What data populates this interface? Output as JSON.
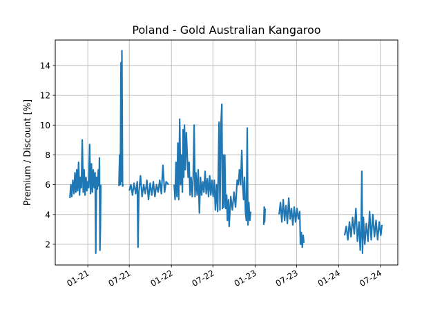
{
  "chart_data": {
    "type": "line",
    "title": "Poland - Gold Australian Kangaroo",
    "xlabel": "",
    "ylabel": "Premium / Discount [%]",
    "xlim": [
      "2020-08-12",
      "2024-09-15"
    ],
    "ylim": [
      0.61,
      15.71
    ],
    "grid": true,
    "line_color": "#1f77b4",
    "x_ticks": [
      {
        "date": "2021-01-01",
        "label": "01-21"
      },
      {
        "date": "2021-07-01",
        "label": "07-21"
      },
      {
        "date": "2022-01-01",
        "label": "01-22"
      },
      {
        "date": "2022-07-01",
        "label": "07-22"
      },
      {
        "date": "2023-01-01",
        "label": "01-23"
      },
      {
        "date": "2023-07-01",
        "label": "07-23"
      },
      {
        "date": "2024-01-01",
        "label": "01-24"
      },
      {
        "date": "2024-07-01",
        "label": "07-24"
      }
    ],
    "y_ticks": [
      {
        "value": 2,
        "label": "2"
      },
      {
        "value": 4,
        "label": "4"
      },
      {
        "value": 6,
        "label": "6"
      },
      {
        "value": 8,
        "label": "8"
      },
      {
        "value": 10,
        "label": "10"
      },
      {
        "value": 12,
        "label": "12"
      },
      {
        "value": 14,
        "label": "14"
      }
    ],
    "segments": [
      [
        [
          "2020-10-15",
          5.1
        ],
        [
          "2020-10-19",
          6.0
        ],
        [
          "2020-10-23",
          5.2
        ],
        [
          "2020-10-28",
          6.3
        ],
        [
          "2020-11-02",
          5.4
        ],
        [
          "2020-11-06",
          6.8
        ],
        [
          "2020-11-10",
          5.5
        ],
        [
          "2020-11-14",
          7.0
        ],
        [
          "2020-11-18",
          5.6
        ],
        [
          "2020-11-22",
          7.5
        ],
        [
          "2020-11-26",
          5.3
        ],
        [
          "2020-11-30",
          6.5
        ],
        [
          "2020-12-04",
          5.8
        ],
        [
          "2020-12-08",
          9.0
        ],
        [
          "2020-12-12",
          5.5
        ],
        [
          "2020-12-16",
          7.0
        ],
        [
          "2020-12-20",
          5.3
        ],
        [
          "2020-12-24",
          6.5
        ],
        [
          "2020-12-28",
          5.6
        ],
        [
          "2021-01-01",
          6.2
        ],
        [
          "2021-01-05",
          5.8
        ],
        [
          "2021-01-09",
          8.7
        ],
        [
          "2021-01-13",
          5.4
        ],
        [
          "2021-01-17",
          7.4
        ],
        [
          "2021-01-21",
          5.5
        ],
        [
          "2021-01-25",
          7.0
        ],
        [
          "2021-01-29",
          5.8
        ],
        [
          "2021-02-02",
          6.8
        ],
        [
          "2021-02-05",
          1.4
        ],
        [
          "2021-02-08",
          6.5
        ],
        [
          "2021-02-12",
          5.7
        ],
        [
          "2021-02-16",
          7.0
        ],
        [
          "2021-02-19",
          5.9
        ],
        [
          "2021-02-21",
          7.8
        ],
        [
          "2021-02-23",
          1.6
        ],
        [
          "2021-02-25",
          3.1
        ],
        [
          "2021-02-27",
          6.0
        ]
      ],
      [
        [
          "2021-05-17",
          5.9
        ],
        [
          "2021-05-20",
          8.0
        ],
        [
          "2021-05-23",
          6.0
        ],
        [
          "2021-05-26",
          14.2
        ],
        [
          "2021-05-28",
          6.2
        ],
        [
          "2021-05-30",
          15.0
        ],
        [
          "2021-06-02",
          5.9
        ],
        [
          "2021-06-05",
          6.0
        ]
      ],
      [
        [
          "2021-07-01",
          5.6
        ],
        [
          "2021-07-08",
          6.0
        ],
        [
          "2021-07-15",
          5.3
        ],
        [
          "2021-07-22",
          6.1
        ],
        [
          "2021-07-29",
          5.4
        ],
        [
          "2021-08-05",
          6.2
        ],
        [
          "2021-08-08",
          1.8
        ],
        [
          "2021-08-12",
          5.5
        ],
        [
          "2021-08-19",
          6.6
        ],
        [
          "2021-08-26",
          5.2
        ],
        [
          "2021-09-02",
          6.0
        ],
        [
          "2021-09-09",
          5.4
        ],
        [
          "2021-09-16",
          6.3
        ],
        [
          "2021-09-23",
          5.0
        ],
        [
          "2021-09-30",
          6.1
        ],
        [
          "2021-10-07",
          5.3
        ],
        [
          "2021-10-14",
          6.2
        ],
        [
          "2021-10-21",
          5.2
        ],
        [
          "2021-10-28",
          6.0
        ],
        [
          "2021-11-04",
          5.5
        ],
        [
          "2021-11-11",
          6.3
        ],
        [
          "2021-11-18",
          5.4
        ],
        [
          "2021-11-25",
          7.3
        ],
        [
          "2021-12-02",
          5.5
        ],
        [
          "2021-12-09",
          6.2
        ],
        [
          "2021-12-19",
          6.0
        ]
      ],
      [
        [
          "2022-01-13",
          6.0
        ],
        [
          "2022-01-17",
          5.0
        ],
        [
          "2022-01-21",
          7.5
        ],
        [
          "2022-01-25",
          5.2
        ],
        [
          "2022-01-29",
          8.8
        ],
        [
          "2022-02-02",
          5.0
        ],
        [
          "2022-02-06",
          10.4
        ],
        [
          "2022-02-10",
          6.0
        ],
        [
          "2022-02-14",
          8.0
        ],
        [
          "2022-02-18",
          5.5
        ],
        [
          "2022-02-21",
          9.7
        ],
        [
          "2022-02-24",
          6.5
        ],
        [
          "2022-02-27",
          10.0
        ],
        [
          "2022-03-03",
          7.0
        ],
        [
          "2022-03-07",
          9.5
        ],
        [
          "2022-03-11",
          8.0
        ],
        [
          "2022-03-15",
          6.5
        ],
        [
          "2022-03-19",
          7.5
        ],
        [
          "2022-03-23",
          5.3
        ],
        [
          "2022-03-28",
          6.5
        ],
        [
          "2022-04-02",
          5.2
        ],
        [
          "2022-04-06",
          6.5
        ],
        [
          "2022-04-10",
          10.0
        ],
        [
          "2022-04-14",
          5.2
        ],
        [
          "2022-04-18",
          6.8
        ],
        [
          "2022-04-23",
          5.3
        ],
        [
          "2022-04-28",
          7.0
        ],
        [
          "2022-05-03",
          4.1
        ],
        [
          "2022-05-08",
          6.5
        ],
        [
          "2022-05-13",
          5.3
        ],
        [
          "2022-05-18",
          6.2
        ],
        [
          "2022-05-23",
          5.5
        ],
        [
          "2022-05-28",
          6.9
        ],
        [
          "2022-06-02",
          5.4
        ],
        [
          "2022-06-07",
          6.4
        ],
        [
          "2022-06-12",
          5.2
        ],
        [
          "2022-06-17",
          6.6
        ],
        [
          "2022-06-22",
          5.3
        ],
        [
          "2022-06-27",
          6.3
        ],
        [
          "2022-07-02",
          5.2
        ],
        [
          "2022-07-07",
          6.3
        ],
        [
          "2022-07-12",
          4.3
        ],
        [
          "2022-07-17",
          6.0
        ],
        [
          "2022-07-22",
          4.2
        ],
        [
          "2022-07-28",
          10.2
        ],
        [
          "2022-08-01",
          4.3
        ],
        [
          "2022-08-05",
          10.0
        ],
        [
          "2022-08-09",
          11.4
        ],
        [
          "2022-08-12",
          4.4
        ],
        [
          "2022-08-15",
          8.0
        ],
        [
          "2022-08-18",
          4.5
        ],
        [
          "2022-08-22",
          8.0
        ],
        [
          "2022-08-26",
          4.4
        ],
        [
          "2022-08-30",
          5.3
        ],
        [
          "2022-09-02",
          3.6
        ],
        [
          "2022-09-07",
          5.0
        ],
        [
          "2022-09-10",
          3.2
        ],
        [
          "2022-09-17",
          5.2
        ],
        [
          "2022-09-24",
          4.3
        ],
        [
          "2022-10-01",
          5.5
        ],
        [
          "2022-10-08",
          4.5
        ],
        [
          "2022-10-15",
          6.3
        ],
        [
          "2022-10-20",
          6.0
        ],
        [
          "2022-10-25",
          7.0
        ],
        [
          "2022-10-30",
          6.0
        ],
        [
          "2022-11-04",
          8.3
        ],
        [
          "2022-11-08",
          6.0
        ],
        [
          "2022-11-12",
          5.0
        ],
        [
          "2022-11-16",
          6.5
        ],
        [
          "2022-11-20",
          4.2
        ],
        [
          "2022-11-24",
          3.6
        ],
        [
          "2022-11-28",
          9.8
        ],
        [
          "2022-12-01",
          3.3
        ],
        [
          "2022-12-05",
          4.8
        ],
        [
          "2022-12-09",
          3.6
        ],
        [
          "2022-12-13",
          4.2
        ]
      ],
      [
        [
          "2023-02-08",
          3.3
        ],
        [
          "2023-02-10",
          4.5
        ],
        [
          "2023-02-12",
          3.5
        ],
        [
          "2023-02-14",
          4.4
        ]
      ],
      [
        [
          "2023-04-16",
          4.0
        ],
        [
          "2023-04-22",
          4.8
        ],
        [
          "2023-04-28",
          3.5
        ],
        [
          "2023-05-04",
          5.0
        ],
        [
          "2023-05-10",
          3.6
        ],
        [
          "2023-05-16",
          4.6
        ],
        [
          "2023-05-22",
          3.4
        ],
        [
          "2023-05-28",
          5.1
        ],
        [
          "2023-06-03",
          3.7
        ],
        [
          "2023-06-09",
          4.4
        ],
        [
          "2023-06-15",
          3.3
        ],
        [
          "2023-06-21",
          4.5
        ],
        [
          "2023-06-27",
          3.5
        ],
        [
          "2023-07-03",
          4.4
        ],
        [
          "2023-07-09",
          3.7
        ],
        [
          "2023-07-15",
          4.2
        ],
        [
          "2023-07-18",
          2.0
        ],
        [
          "2023-07-22",
          2.8
        ],
        [
          "2023-07-26",
          1.8
        ],
        [
          "2023-07-30",
          2.6
        ],
        [
          "2023-08-02",
          2.1
        ]
      ],
      [
        [
          "2024-01-27",
          2.6
        ],
        [
          "2024-02-03",
          3.2
        ],
        [
          "2024-02-10",
          2.3
        ],
        [
          "2024-02-17",
          3.5
        ],
        [
          "2024-02-24",
          2.5
        ],
        [
          "2024-03-02",
          3.8
        ],
        [
          "2024-03-09",
          2.7
        ],
        [
          "2024-03-16",
          4.4
        ],
        [
          "2024-03-23",
          2.2
        ],
        [
          "2024-03-30",
          3.5
        ],
        [
          "2024-04-04",
          1.6
        ],
        [
          "2024-04-08",
          3.0
        ],
        [
          "2024-04-11",
          6.9
        ],
        [
          "2024-04-14",
          1.4
        ],
        [
          "2024-04-18",
          3.8
        ],
        [
          "2024-04-24",
          2.0
        ],
        [
          "2024-05-01",
          3.4
        ],
        [
          "2024-05-08",
          2.2
        ],
        [
          "2024-05-15",
          4.2
        ],
        [
          "2024-05-22",
          2.3
        ],
        [
          "2024-05-29",
          4.0
        ],
        [
          "2024-06-05",
          2.5
        ],
        [
          "2024-06-12",
          3.6
        ],
        [
          "2024-06-19",
          2.3
        ],
        [
          "2024-06-26",
          3.5
        ],
        [
          "2024-07-03",
          2.6
        ],
        [
          "2024-07-08",
          3.3
        ]
      ]
    ]
  }
}
